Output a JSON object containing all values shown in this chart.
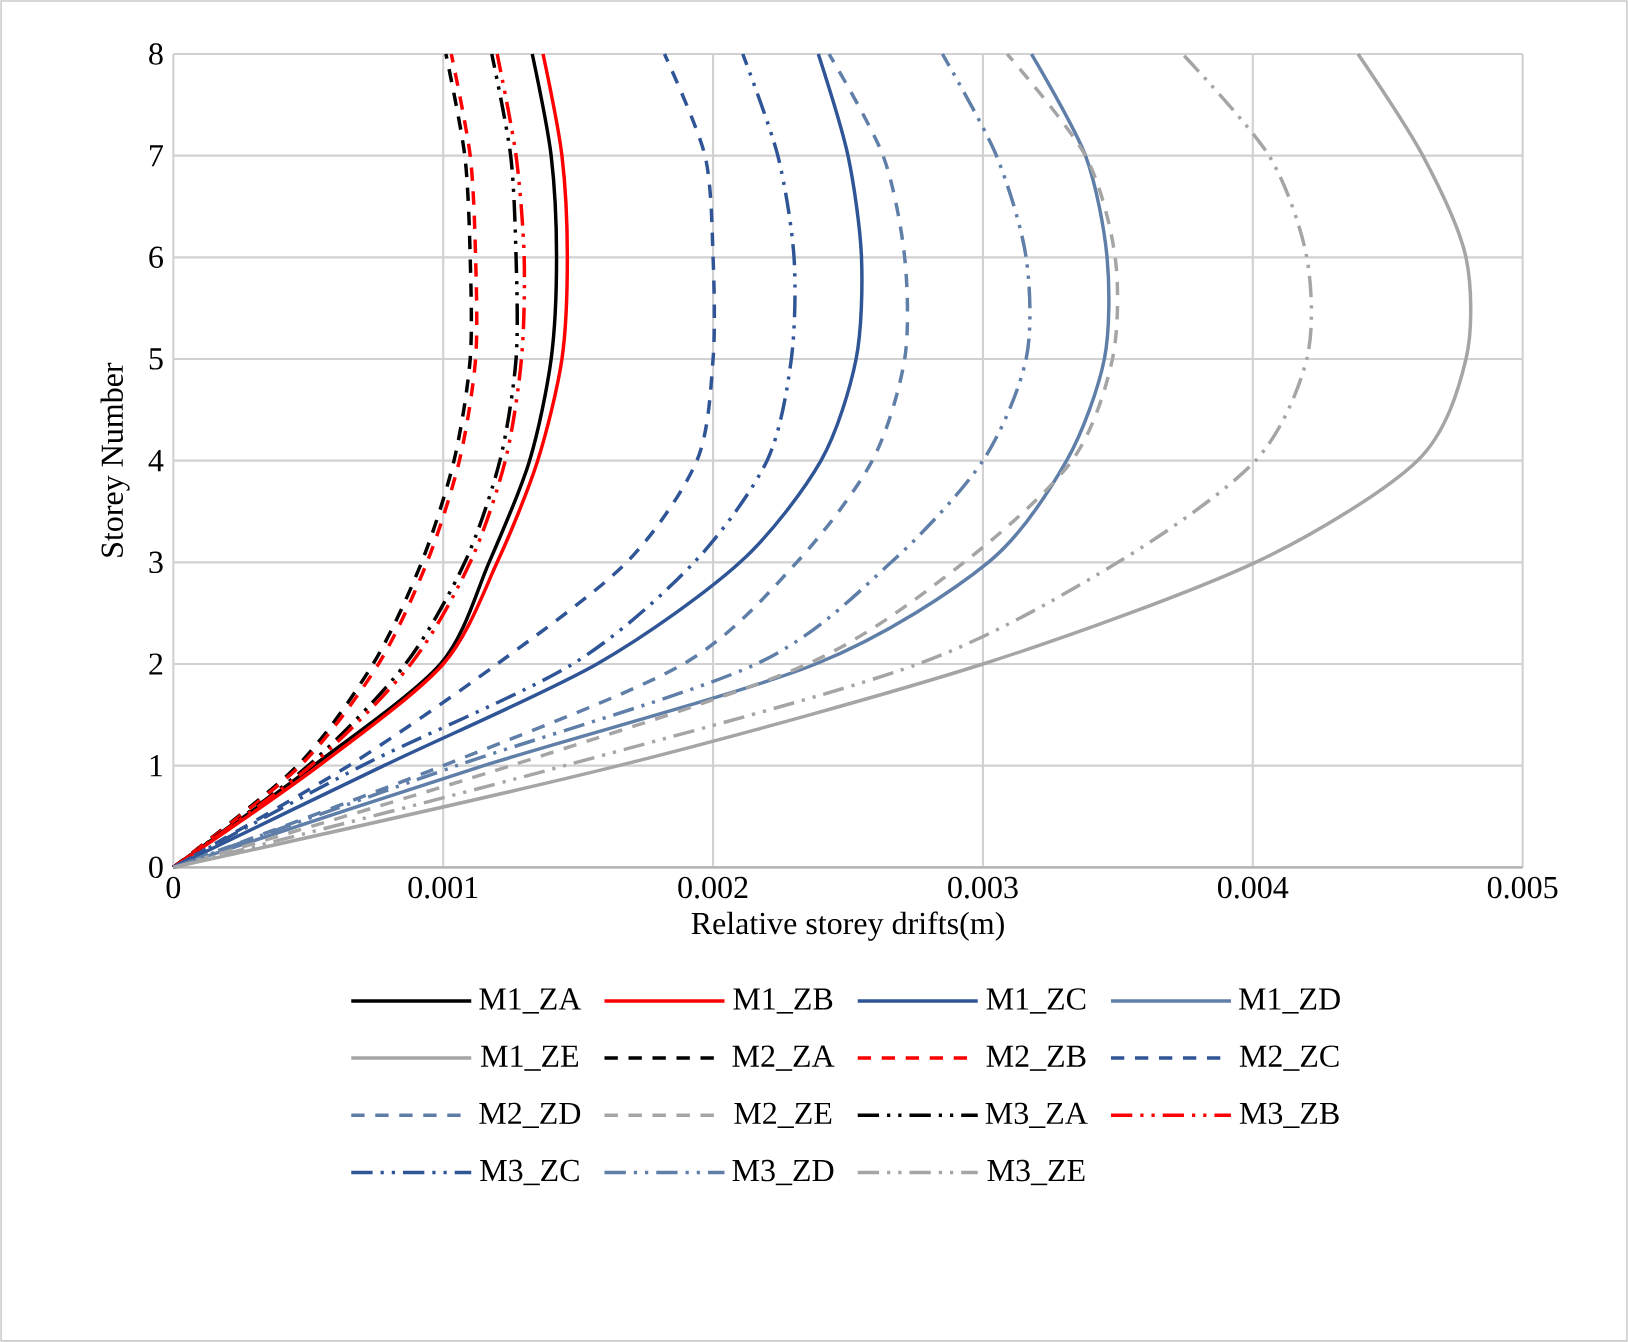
{
  "chart_data": {
    "type": "line",
    "xlabel": "Relative storey drifts(m)",
    "ylabel": "Storey Number",
    "xlim": [
      0,
      0.005
    ],
    "ylim": [
      0,
      8
    ],
    "xticks": [
      0,
      0.001,
      0.002,
      0.003,
      0.004,
      0.005
    ],
    "yticks": [
      0,
      1,
      2,
      3,
      4,
      5,
      6,
      7,
      8
    ],
    "grid": true,
    "legend": "bottom",
    "series": [
      {
        "name": "M1_ZA",
        "color": "#000000",
        "line_style": "solid",
        "values": [
          0,
          1,
          2,
          3,
          4,
          5,
          6,
          7,
          8
        ],
        "x": [
          0,
          0.00052,
          0.00099,
          0.00117,
          0.00132,
          0.0014,
          0.00142,
          0.0014,
          0.00133
        ]
      },
      {
        "name": "M1_ZB",
        "color": "#ff0000",
        "line_style": "solid",
        "values": [
          0,
          1,
          2,
          3,
          4,
          5,
          6,
          7,
          8
        ],
        "x": [
          0,
          0.00054,
          0.001,
          0.0012,
          0.00135,
          0.00144,
          0.00146,
          0.00144,
          0.00137
        ]
      },
      {
        "name": "M1_ZC",
        "color": "#2f5597",
        "line_style": "solid",
        "values": [
          0,
          1,
          2,
          3,
          4,
          5,
          6,
          7,
          8
        ],
        "x": [
          0,
          0.00078,
          0.00157,
          0.0021,
          0.0024,
          0.00253,
          0.00255,
          0.0025,
          0.00239
        ]
      },
      {
        "name": "M1_ZD",
        "color": "#5f7ea8",
        "line_style": "solid",
        "values": [
          0,
          1,
          2,
          3,
          4,
          5,
          6,
          7,
          8
        ],
        "x": [
          0,
          0.00115,
          0.00238,
          0.00302,
          0.00331,
          0.00345,
          0.00346,
          0.00338,
          0.00318
        ]
      },
      {
        "name": "M1_ZE",
        "color": "#a5a5a5",
        "line_style": "solid",
        "values": [
          0,
          1,
          2,
          3,
          4,
          5,
          6,
          7,
          8
        ],
        "x": [
          0,
          0.00165,
          0.003,
          0.00401,
          0.00461,
          0.00479,
          0.00479,
          0.00463,
          0.00439
        ]
      },
      {
        "name": "M2_ZA",
        "color": "#000000",
        "line_style": "dashed",
        "values": [
          0,
          1,
          2,
          3,
          4,
          5,
          6,
          7,
          8
        ],
        "x": [
          0,
          0.00046,
          0.00074,
          0.00092,
          0.00104,
          0.0011,
          0.0011,
          0.00108,
          0.00101
        ]
      },
      {
        "name": "M2_ZB",
        "color": "#ff0000",
        "line_style": "dashed",
        "values": [
          0,
          1,
          2,
          3,
          4,
          5,
          6,
          7,
          8
        ],
        "x": [
          0,
          0.00047,
          0.00076,
          0.00094,
          0.00106,
          0.00112,
          0.00112,
          0.0011,
          0.00103
        ]
      },
      {
        "name": "M2_ZC",
        "color": "#2f5597",
        "line_style": "dashed",
        "values": [
          0,
          1,
          2,
          3,
          4,
          5,
          6,
          7,
          8
        ],
        "x": [
          0,
          0.00065,
          0.0012,
          0.00168,
          0.00194,
          0.002,
          0.002,
          0.00197,
          0.00182
        ]
      },
      {
        "name": "M2_ZD",
        "color": "#5f7ea8",
        "line_style": "dashed",
        "values": [
          0,
          1,
          2,
          3,
          4,
          5,
          6,
          7,
          8
        ],
        "x": [
          0,
          0.001,
          0.00189,
          0.00231,
          0.00259,
          0.00271,
          0.00271,
          0.00263,
          0.00243
        ]
      },
      {
        "name": "M2_ZE",
        "color": "#a5a5a5",
        "line_style": "dashed",
        "values": [
          0,
          1,
          2,
          3,
          4,
          5,
          6,
          7,
          8
        ],
        "x": [
          0,
          0.00125,
          0.00235,
          0.00293,
          0.00333,
          0.00348,
          0.00349,
          0.00338,
          0.00309
        ]
      },
      {
        "name": "M3_ZA",
        "color": "#000000",
        "line_style": "dashdotted",
        "values": [
          0,
          1,
          2,
          3,
          4,
          5,
          6,
          7,
          8
        ],
        "x": [
          0,
          0.0005,
          0.00086,
          0.00108,
          0.00121,
          0.00127,
          0.00127,
          0.00125,
          0.00118
        ]
      },
      {
        "name": "M3_ZB",
        "color": "#ff0000",
        "line_style": "dashdotted",
        "values": [
          0,
          1,
          2,
          3,
          4,
          5,
          6,
          7,
          8
        ],
        "x": [
          0,
          0.00051,
          0.00088,
          0.0011,
          0.00123,
          0.00129,
          0.0013,
          0.00127,
          0.0012
        ]
      },
      {
        "name": "M3_ZC",
        "color": "#2f5597",
        "line_style": "dashdotted",
        "values": [
          0,
          1,
          2,
          3,
          4,
          5,
          6,
          7,
          8
        ],
        "x": [
          0,
          0.0007,
          0.00148,
          0.00193,
          0.0022,
          0.00229,
          0.0023,
          0.00224,
          0.00211
        ]
      },
      {
        "name": "M3_ZD",
        "color": "#5f7ea8",
        "line_style": "dashdotted",
        "values": [
          0,
          1,
          2,
          3,
          4,
          5,
          6,
          7,
          8
        ],
        "x": [
          0,
          0.00105,
          0.00216,
          0.00266,
          0.003,
          0.00316,
          0.00316,
          0.00305,
          0.00285
        ]
      },
      {
        "name": "M3_ZE",
        "color": "#a5a5a5",
        "line_style": "dashdotted",
        "values": [
          0,
          1,
          2,
          3,
          4,
          5,
          6,
          7,
          8
        ],
        "x": [
          0,
          0.00145,
          0.00276,
          0.0035,
          0.00401,
          0.0042,
          0.0042,
          0.00406,
          0.00374
        ]
      }
    ]
  }
}
